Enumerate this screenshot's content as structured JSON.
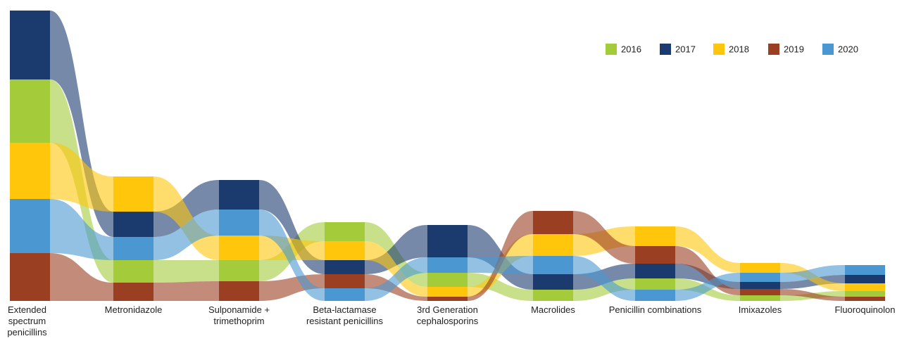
{
  "chart_data": {
    "type": "ribbon",
    "categories": [
      "Extended spectrum penicillins",
      "Metronidazole",
      "Sulponamide + trimethoprim",
      "Beta-lactamase resistant penicillins",
      "3rd Generation cephalosporins",
      "Macrolides",
      "Penicillin combinations",
      "Imixazoles",
      "Fluoroquinolon"
    ],
    "series": [
      {
        "name": "2016",
        "color": "#a4cc3a",
        "values": [
          90,
          32,
          30,
          27,
          20,
          16,
          16,
          8,
          8
        ]
      },
      {
        "name": "2017",
        "color": "#1b3a6e",
        "values": [
          98,
          36,
          42,
          20,
          46,
          22,
          21,
          10,
          12
        ]
      },
      {
        "name": "2018",
        "color": "#ffc60b",
        "values": [
          80,
          50,
          35,
          27,
          14,
          31,
          28,
          14,
          11
        ]
      },
      {
        "name": "2019",
        "color": "#9b3f22",
        "values": [
          68,
          26,
          28,
          20,
          6,
          33,
          25,
          9,
          6
        ]
      },
      {
        "name": "2020",
        "color": "#4a97d2",
        "values": [
          77,
          33,
          37,
          18,
          22,
          26,
          16,
          13,
          14
        ]
      }
    ]
  }
}
